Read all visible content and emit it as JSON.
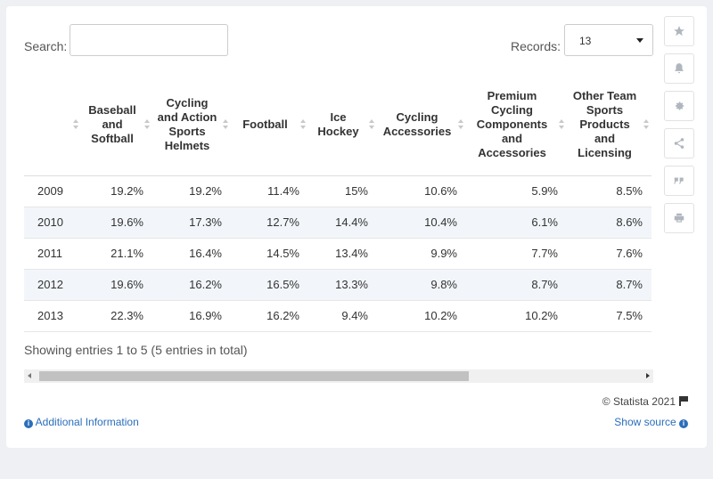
{
  "search": {
    "label": "Search:",
    "value": "",
    "placeholder": ""
  },
  "records": {
    "label": "Records:",
    "selected": "13"
  },
  "table": {
    "columns": [
      "",
      "Baseball and Softball",
      "Cycling and Action Sports Helmets",
      "Football",
      "Ice Hockey",
      "Cycling Accessories",
      "Premium Cycling Components and Accessories",
      "Other Team Sports Products and Licensing"
    ],
    "rows": [
      [
        "2009",
        "19.2%",
        "19.2%",
        "11.4%",
        "15%",
        "10.6%",
        "5.9%",
        "8.5%"
      ],
      [
        "2010",
        "19.6%",
        "17.3%",
        "12.7%",
        "14.4%",
        "10.4%",
        "6.1%",
        "8.6%"
      ],
      [
        "2011",
        "21.1%",
        "16.4%",
        "14.5%",
        "13.4%",
        "9.9%",
        "7.7%",
        "7.6%"
      ],
      [
        "2012",
        "19.6%",
        "16.2%",
        "16.5%",
        "13.3%",
        "9.8%",
        "8.7%",
        "8.7%"
      ],
      [
        "2013",
        "22.3%",
        "16.9%",
        "16.2%",
        "9.4%",
        "10.2%",
        "10.2%",
        "7.5%"
      ]
    ]
  },
  "footer": {
    "entries": "Showing entries 1 to 5 (5 entries in total)",
    "credit": "© Statista 2021",
    "additional_info": "Additional Information",
    "show_source": "Show source"
  },
  "sidebar": {
    "icons": [
      "star-icon",
      "bell-icon",
      "gear-icon",
      "share-icon",
      "quote-icon",
      "print-icon"
    ]
  },
  "colors": {
    "accent": "#2a6ebb",
    "row_alt": "#f2f6fa",
    "background": "#eef0f3"
  }
}
